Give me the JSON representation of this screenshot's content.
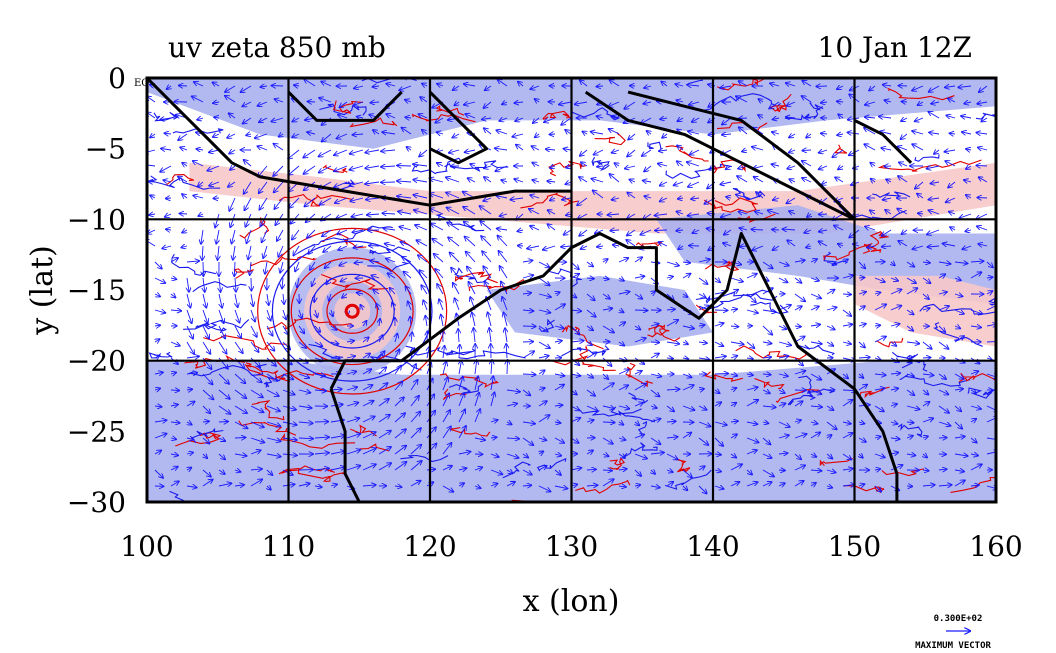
{
  "title_left": "uv zeta 850 mb",
  "title_right": "10 Jan 12Z",
  "chart_data": {
    "type": "map",
    "xlabel": "x (lon)",
    "ylabel": "y (lat)",
    "xlim": [
      100,
      160
    ],
    "ylim": [
      -30,
      0
    ],
    "x_ticks": [
      "100",
      "110",
      "120",
      "130",
      "140",
      "150",
      "160"
    ],
    "y_ticks": [
      "0",
      "−5",
      "−10",
      "−15",
      "−20",
      "−25",
      "−30"
    ],
    "grid_lon": [
      110,
      120,
      130,
      140,
      150
    ],
    "grid_lat": [
      -10,
      -20
    ],
    "top_left_label": "EQ",
    "cyclone_center": {
      "lon": 114.5,
      "lat": -16.5
    },
    "colors": {
      "positive_fill": "#f7c8c8",
      "positive_contour": "#e00000",
      "negative_fill": "#aab0ee",
      "negative_contour": "#1a1aee",
      "vector": "#1a1aff",
      "coast": "#000000",
      "grid": "#000000"
    }
  },
  "vector_key": {
    "magnitude": "0.300E+02",
    "label": "MAXIMUM VECTOR"
  }
}
